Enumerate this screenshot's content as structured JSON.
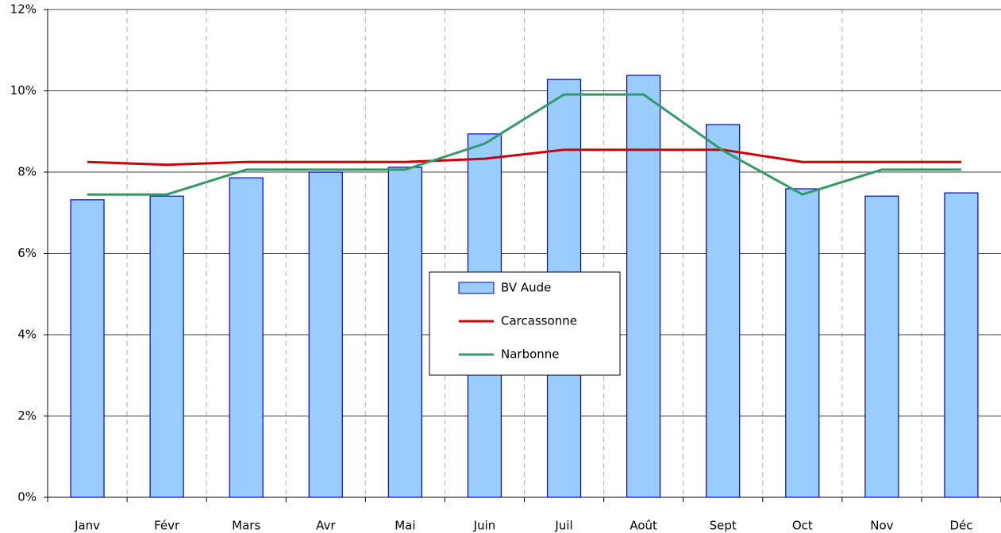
{
  "chart_data": {
    "type": "bar_line",
    "categories": [
      "Janv",
      "Févr",
      "Mars",
      "Avr",
      "Mai",
      "Juin",
      "Juil",
      "Août",
      "Sept",
      "Oct",
      "Nov",
      "Déc"
    ],
    "series": [
      {
        "name": "BV Aude",
        "type": "bar",
        "color": "#99ccff",
        "edge": "#0000cc",
        "values": [
          7.32,
          7.41,
          7.86,
          8.0,
          8.12,
          8.94,
          10.28,
          10.38,
          9.17,
          7.59,
          7.41,
          7.49
        ]
      },
      {
        "name": "Carcassonne",
        "type": "line",
        "color": "#cc0000",
        "values": [
          8.25,
          8.18,
          8.25,
          8.25,
          8.25,
          8.33,
          8.55,
          8.55,
          8.55,
          8.25,
          8.25,
          8.25
        ]
      },
      {
        "name": "Narbonne",
        "type": "line",
        "color": "#339966",
        "values": [
          7.45,
          7.45,
          8.06,
          8.06,
          8.06,
          8.7,
          9.91,
          9.91,
          8.53,
          7.45,
          8.06,
          8.06
        ]
      }
    ],
    "ylim": [
      0,
      12
    ],
    "yticks": [
      {
        "value": 0,
        "label": "0%"
      },
      {
        "value": 2,
        "label": "2%"
      },
      {
        "value": 4,
        "label": "4%"
      },
      {
        "value": 6,
        "label": "6%"
      },
      {
        "value": 8,
        "label": "8%"
      },
      {
        "value": 10,
        "label": "10%"
      },
      {
        "value": 12,
        "label": "12%"
      }
    ],
    "grid": true,
    "legend": "center"
  }
}
